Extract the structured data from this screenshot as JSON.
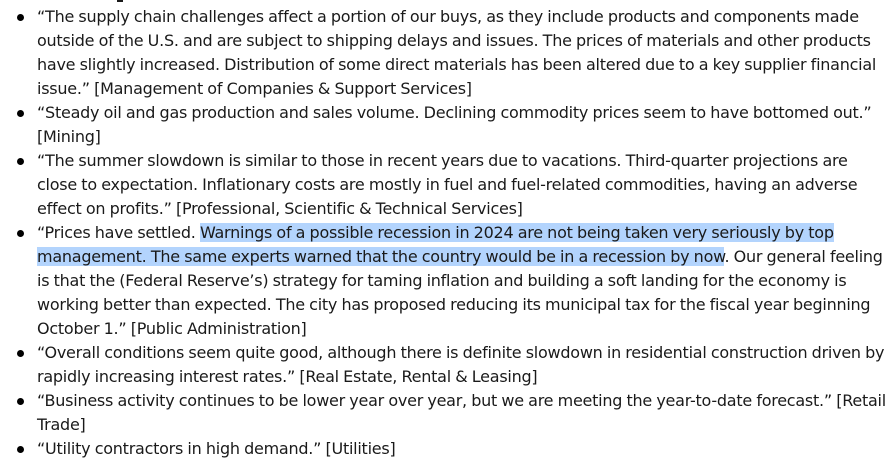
{
  "quotes": [
    {
      "text": "“The supply chain challenges affect a portion of our buys, as they include products and components made outside of the U.S. and are subject to shipping delays and issues. The prices of materials and other products have slightly increased. Distribution of some direct materials has been altered due to a key supplier financial issue.”",
      "industry": "[Management of Companies & Support Services]"
    },
    {
      "text": "“Steady oil and gas production and sales volume. Declining commodity prices seem to have bottomed out.”",
      "industry": "[Mining]"
    },
    {
      "text": "“The summer slowdown is similar to those in recent years due to vacations. Third-quarter projections are close to expectation. Inflationary costs are mostly in fuel and fuel-related commodities, having an adverse effect on profits.”",
      "industry": "[Professional, Scientific & Technical Services]"
    },
    {
      "text_before": "“Prices have settled.",
      "text_selected": "Warnings of a possible recession in 2024 are not being taken very seriously by top management. The same experts warned that the country would be in a recession by now",
      "text_after": ". Our general feeling is that the (Federal Reserve’s) strategy for taming inflation and building a soft landing for the economy is working better than expected. The city has proposed reducing its municipal tax for the fiscal year beginning October 1.”",
      "industry": "[Public Administration]"
    },
    {
      "text": "“Overall conditions seem quite good, although there is definite slowdown in residential construction driven by rapidly increasing interest rates.”",
      "industry": "[Real Estate, Rental & Leasing]"
    },
    {
      "text": "“Business activity continues to be lower year over year, but we are meeting the year-to-date forecast.”",
      "industry": "[Retail Trade]"
    },
    {
      "text": "“Utility contractors in high demand.”",
      "industry": "[Utilities]"
    }
  ],
  "colors": {
    "text": "#1a1a1a",
    "selection": "#b3d4fd",
    "bullet": "#000000"
  }
}
